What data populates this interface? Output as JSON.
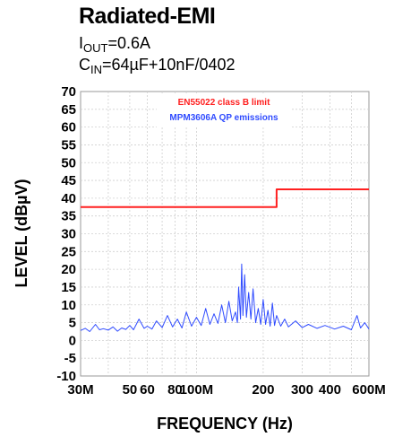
{
  "chart_data": {
    "type": "line",
    "title": "Radiated-EMI",
    "subtitle_line1": {
      "main": "I",
      "sub": "OUT",
      "rest": "=0.6A"
    },
    "subtitle_line2": {
      "main": "C",
      "sub": "IN",
      "rest": "=64µF+10nF/0402"
    },
    "xlabel": "FREQUENCY (Hz)",
    "ylabel": "LEVEL (dBµV)",
    "x_scale": "log",
    "xlim": [
      30000000,
      600000000
    ],
    "ylim": [
      -10,
      70
    ],
    "grid": true,
    "legend_position": "top-center",
    "x_tick_labels": [
      {
        "value": 30000000,
        "label": "30M"
      },
      {
        "value": 50000000,
        "label": "50"
      },
      {
        "value": 60000000,
        "label": "60"
      },
      {
        "value": 80000000,
        "label": "80"
      },
      {
        "value": 100000000,
        "label": "100M"
      },
      {
        "value": 200000000,
        "label": "200"
      },
      {
        "value": 300000000,
        "label": "300"
      },
      {
        "value": 400000000,
        "label": "400"
      },
      {
        "value": 600000000,
        "label": "600M"
      }
    ],
    "y_ticks": [
      70,
      65,
      60,
      55,
      50,
      45,
      40,
      35,
      30,
      25,
      20,
      15,
      10,
      5,
      0,
      -5,
      -10
    ],
    "series": [
      {
        "name": "EN55022 class B limit",
        "color": "#ff2020",
        "kind": "step",
        "points": [
          [
            30000000,
            37.5
          ],
          [
            230000000,
            37.5
          ],
          [
            230000000,
            42.5
          ],
          [
            600000000,
            42.5
          ]
        ]
      },
      {
        "name": "MPM3606A QP emissions",
        "color": "#2f4bff",
        "kind": "line",
        "points": [
          [
            30000000,
            2.8
          ],
          [
            31500000,
            3.4
          ],
          [
            33000000,
            2.5
          ],
          [
            35000000,
            4.5
          ],
          [
            36500000,
            3.0
          ],
          [
            38000000,
            3.3
          ],
          [
            40000000,
            2.9
          ],
          [
            42000000,
            3.8
          ],
          [
            44000000,
            2.6
          ],
          [
            46000000,
            3.5
          ],
          [
            48000000,
            3.1
          ],
          [
            50000000,
            4.2
          ],
          [
            52000000,
            3.0
          ],
          [
            55000000,
            6.0
          ],
          [
            58000000,
            3.4
          ],
          [
            60000000,
            4.0
          ],
          [
            63000000,
            3.2
          ],
          [
            66000000,
            5.5
          ],
          [
            70000000,
            3.6
          ],
          [
            74000000,
            7.0
          ],
          [
            78000000,
            3.8
          ],
          [
            82000000,
            6.0
          ],
          [
            86000000,
            3.5
          ],
          [
            90000000,
            8.0
          ],
          [
            95000000,
            4.0
          ],
          [
            100000000,
            6.5
          ],
          [
            105000000,
            4.2
          ],
          [
            110000000,
            9.0
          ],
          [
            115000000,
            4.5
          ],
          [
            120000000,
            7.5
          ],
          [
            125000000,
            4.8
          ],
          [
            130000000,
            10.0
          ],
          [
            135000000,
            5.0
          ],
          [
            140000000,
            11.0
          ],
          [
            145000000,
            5.5
          ],
          [
            150000000,
            8.0
          ],
          [
            153000000,
            5.0
          ],
          [
            155000000,
            15.0
          ],
          [
            158000000,
            6.0
          ],
          [
            160000000,
            21.5
          ],
          [
            162000000,
            7.0
          ],
          [
            165000000,
            18.5
          ],
          [
            168000000,
            6.5
          ],
          [
            172000000,
            13.5
          ],
          [
            176000000,
            6.0
          ],
          [
            180000000,
            14.5
          ],
          [
            185000000,
            5.0
          ],
          [
            190000000,
            9.0
          ],
          [
            195000000,
            4.5
          ],
          [
            200000000,
            11.5
          ],
          [
            205000000,
            4.5
          ],
          [
            210000000,
            8.5
          ],
          [
            215000000,
            4.0
          ],
          [
            220000000,
            10.5
          ],
          [
            225000000,
            4.2
          ],
          [
            230000000,
            7.0
          ],
          [
            240000000,
            4.0
          ],
          [
            250000000,
            6.0
          ],
          [
            260000000,
            3.8
          ],
          [
            280000000,
            5.5
          ],
          [
            300000000,
            3.6
          ],
          [
            320000000,
            4.5
          ],
          [
            350000000,
            3.4
          ],
          [
            380000000,
            4.2
          ],
          [
            420000000,
            3.2
          ],
          [
            460000000,
            4.0
          ],
          [
            500000000,
            3.0
          ],
          [
            530000000,
            7.0
          ],
          [
            550000000,
            3.5
          ],
          [
            575000000,
            5.0
          ],
          [
            600000000,
            3.2
          ]
        ]
      }
    ]
  }
}
